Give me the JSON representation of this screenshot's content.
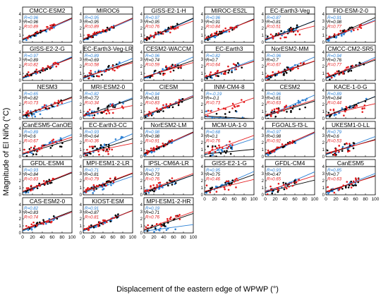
{
  "figure": {
    "ylabel": "Magnitude of El Niño (°C)",
    "xlabel": "Displacement of the eastern edge of WPWP (°)",
    "yticks": [
      "0",
      "1",
      "2",
      "3",
      "4"
    ],
    "xticks": [
      "0",
      "20",
      "40",
      "60",
      "80",
      "100"
    ],
    "colors": {
      "blue": "#2a7fd4",
      "black": "#000000",
      "red": "#e41a1c"
    },
    "stat_prefix": "R="
  },
  "chart_data": [
    {
      "type": "scatter",
      "title": "CMCC-ESM2",
      "xlim": [
        0,
        100
      ],
      "ylim": [
        0,
        4
      ],
      "r_values": [
        "0.96",
        "0.96",
        "0.89"
      ]
    },
    {
      "type": "scatter",
      "title": "MIROC6",
      "xlim": [
        0,
        100
      ],
      "ylim": [
        0,
        4
      ],
      "r_values": [
        "0.95",
        "0.95",
        "0.89"
      ]
    },
    {
      "type": "scatter",
      "title": "GISS-E2-1-H",
      "xlim": [
        0,
        100
      ],
      "ylim": [
        0,
        4
      ],
      "r_values": [
        "0.97",
        "0.95",
        "0.76"
      ]
    },
    {
      "type": "scatter",
      "title": "MIROC-ES2L",
      "xlim": [
        0,
        100
      ],
      "ylim": [
        0,
        4
      ],
      "r_values": [
        "0.96",
        "0.91",
        "0.84"
      ]
    },
    {
      "type": "scatter",
      "title": "EC-Earth3-Veg",
      "xlim": [
        0,
        100
      ],
      "ylim": [
        0,
        4
      ],
      "r_values": [
        "0.87",
        "0.81",
        "0.51"
      ]
    },
    {
      "type": "scatter",
      "title": "FIO-ESM-2-0",
      "xlim": [
        0,
        100
      ],
      "ylim": [
        0,
        4
      ],
      "r_values": [
        "0.91",
        "0.98",
        "0.77"
      ]
    },
    {
      "type": "scatter",
      "title": "GISS-E2-2-G",
      "xlim": [
        0,
        100
      ],
      "ylim": [
        0,
        4
      ],
      "r_values": [
        "0.97",
        "0.89",
        "0.82"
      ]
    },
    {
      "type": "scatter",
      "title": "EC-Earth3-Veg-LR",
      "xlim": [
        0,
        100
      ],
      "ylim": [
        0,
        4
      ],
      "r_values": [
        "0.89",
        "0.69",
        "0.58"
      ]
    },
    {
      "type": "scatter",
      "title": "CESM2-WACCM",
      "xlim": [
        0,
        100
      ],
      "ylim": [
        0,
        4
      ],
      "r_values": [
        "0.96",
        "0.74",
        "0.59"
      ]
    },
    {
      "type": "scatter",
      "title": "EC-Earth3",
      "xlim": [
        0,
        100
      ],
      "ylim": [
        0,
        4
      ],
      "r_values": [
        "0.82",
        "0.7",
        "0.64"
      ]
    },
    {
      "type": "scatter",
      "title": "NorESM2-MM",
      "xlim": [
        0,
        100
      ],
      "ylim": [
        0,
        4
      ],
      "r_values": [
        "0.96",
        "0.7",
        "0.67"
      ]
    },
    {
      "type": "scatter",
      "title": "CMCC-CM2-SR5",
      "xlim": [
        0,
        100
      ],
      "ylim": [
        0,
        4
      ],
      "r_values": [
        "0.94",
        "0.76",
        "0.77"
      ]
    },
    {
      "type": "scatter",
      "title": "NESM3",
      "xlim": [
        0,
        100
      ],
      "ylim": [
        0,
        4
      ],
      "r_values": [
        "0.65",
        "0.82",
        "0.73"
      ]
    },
    {
      "type": "scatter",
      "title": "MRI-ESM2-0",
      "xlim": [
        0,
        100
      ],
      "ylim": [
        0,
        4
      ],
      "r_values": [
        "0.82",
        "0.72",
        "0.34"
      ]
    },
    {
      "type": "scatter",
      "title": "CIESM",
      "xlim": [
        0,
        100
      ],
      "ylim": [
        0,
        4
      ],
      "r_values": [
        "0.94",
        "0.81",
        "0.83"
      ]
    },
    {
      "type": "scatter",
      "title": "INM-CM4-8",
      "xlim": [
        0,
        100
      ],
      "ylim": [
        0,
        4
      ],
      "r_values": [
        "-0.19",
        "-0.1",
        "0.73"
      ]
    },
    {
      "type": "scatter",
      "title": "CESM2",
      "xlim": [
        0,
        100
      ],
      "ylim": [
        0,
        4
      ],
      "r_values": [
        "0.96",
        "0.61",
        "0.63"
      ]
    },
    {
      "type": "scatter",
      "title": "KACE-1-0-G",
      "xlim": [
        0,
        100
      ],
      "ylim": [
        0,
        4
      ],
      "r_values": [
        "0.89",
        "0.84",
        "0.44"
      ]
    },
    {
      "type": "scatter",
      "title": "CanESM5-CanOE",
      "xlim": [
        0,
        100
      ],
      "ylim": [
        0,
        4
      ],
      "r_values": [
        "0.89",
        "0.6",
        "0.67"
      ]
    },
    {
      "type": "scatter",
      "title": "EC-Earth3-CC",
      "xlim": [
        0,
        100
      ],
      "ylim": [
        0,
        4
      ],
      "r_values": [
        "0.93",
        "0.64",
        "0.36"
      ]
    },
    {
      "type": "scatter",
      "title": "NorESM2-LM",
      "xlim": [
        0,
        100
      ],
      "ylim": [
        0,
        4
      ],
      "r_values": [
        "0.98",
        "0.98",
        "0.91"
      ]
    },
    {
      "type": "scatter",
      "title": "MCM-UA-1-0",
      "xlim": [
        0,
        100
      ],
      "ylim": [
        0,
        4
      ],
      "r_values": [
        "0.68",
        "0.1",
        "0.76"
      ]
    },
    {
      "type": "scatter",
      "title": "FGOALS-f3-L",
      "xlim": [
        0,
        100
      ],
      "ylim": [
        0,
        4
      ],
      "r_values": [
        "0.97",
        "0.98",
        "0.92"
      ]
    },
    {
      "type": "scatter",
      "title": "UKESM1-0-LL",
      "xlim": [
        0,
        100
      ],
      "ylim": [
        0,
        4
      ],
      "r_values": [
        "0.79",
        "0.6",
        "0.53"
      ]
    },
    {
      "type": "scatter",
      "title": "GFDL-ESM4",
      "xlim": [
        0,
        100
      ],
      "ylim": [
        0,
        4
      ],
      "r_values": [
        "0.93",
        "0.84",
        "0.83"
      ]
    },
    {
      "type": "scatter",
      "title": "MPI-ESM1-2-LR",
      "xlim": [
        0,
        100
      ],
      "ylim": [
        0,
        4
      ],
      "r_values": [
        "0.71",
        "0.81",
        "0.79"
      ]
    },
    {
      "type": "scatter",
      "title": "IPSL-CM6A-LR",
      "xlim": [
        0,
        100
      ],
      "ylim": [
        0,
        4
      ],
      "r_values": [
        "0.77",
        "0.73",
        "0.76"
      ]
    },
    {
      "type": "scatter",
      "title": "GISS-E2-1-G",
      "xlim": [
        0,
        100
      ],
      "ylim": [
        0,
        4
      ],
      "r_values": [
        "0.95",
        "0.75",
        "0.46"
      ]
    },
    {
      "type": "scatter",
      "title": "GFDL-CM4",
      "xlim": [
        0,
        100
      ],
      "ylim": [
        0,
        4
      ],
      "r_values": [
        "0.93",
        "0.47",
        "0.65"
      ]
    },
    {
      "type": "scatter",
      "title": "CanESM5",
      "xlim": [
        0,
        100
      ],
      "ylim": [
        0,
        4
      ],
      "r_values": [
        "0.85",
        "0.7",
        "0.63"
      ]
    },
    {
      "type": "scatter",
      "title": "CAS-ESM2-0",
      "xlim": [
        0,
        100
      ],
      "ylim": [
        0,
        4
      ],
      "r_values": [
        "0.82",
        "0.83",
        "0.74"
      ]
    },
    {
      "type": "scatter",
      "title": "KIOST-ESM",
      "xlim": [
        0,
        100
      ],
      "ylim": [
        0,
        4
      ],
      "r_values": [
        "0.91",
        "0.87",
        "0.81"
      ]
    },
    {
      "type": "scatter",
      "title": "MPI-ESM1-2-HR",
      "xlim": [
        0,
        100
      ],
      "ylim": [
        0,
        4
      ],
      "r_values": [
        "0.19",
        "0.71",
        "0.76"
      ]
    }
  ]
}
